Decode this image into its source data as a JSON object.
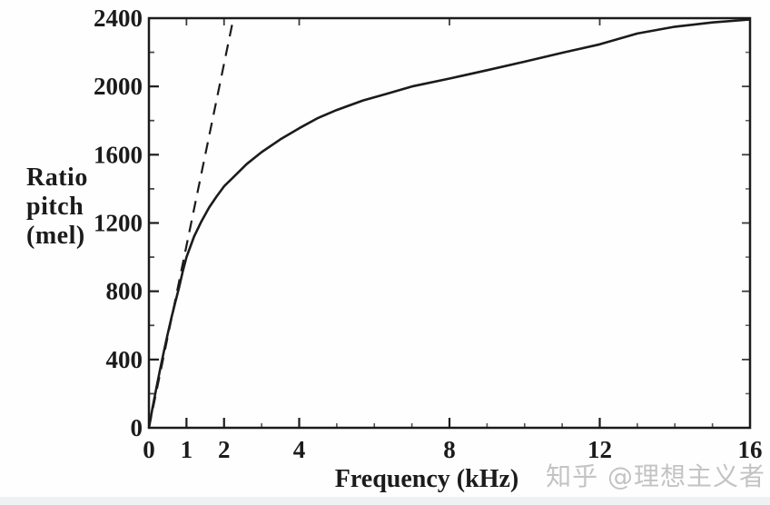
{
  "figure": {
    "background": "#fefefe",
    "ink_color": "#1b1b1b",
    "watermark": {
      "text": "知乎 @理想主义者",
      "color": "#c3c3c3"
    }
  },
  "chart_data": {
    "type": "line",
    "title": "",
    "xlabel": "Frequency (kHz)",
    "ylabel": "Ratio pitch (mel)",
    "ylabel_lines": [
      "Ratio",
      "pitch",
      "(mel)"
    ],
    "xlim": [
      0,
      16
    ],
    "ylim": [
      0,
      2400
    ],
    "grid": false,
    "frame": true,
    "legend": "none",
    "x_tick_labels": [
      0,
      1,
      2,
      4,
      8,
      12,
      16
    ],
    "x_major_ticks": [
      1,
      2,
      4,
      8,
      12
    ],
    "x_minor_ticks": [
      3,
      5,
      6,
      7,
      9,
      10,
      11,
      13,
      14,
      15
    ],
    "y_tick_labels": [
      0,
      400,
      800,
      1200,
      1600,
      2000,
      2400
    ],
    "y_major_ticks": [
      400,
      800,
      1200,
      1600,
      2000
    ],
    "y_minor_ticks": [
      200,
      600,
      1000,
      1400,
      1800,
      2200
    ],
    "series": [
      {
        "name": "linear-reference",
        "style": "dashed",
        "points": [
          [
            0,
            0
          ],
          [
            2.25,
            2400
          ]
        ]
      },
      {
        "name": "mel-scale-curve",
        "style": "solid",
        "points": [
          [
            0,
            0
          ],
          [
            0.1,
            120
          ],
          [
            0.2,
            235
          ],
          [
            0.3,
            345
          ],
          [
            0.4,
            450
          ],
          [
            0.5,
            550
          ],
          [
            0.6,
            645
          ],
          [
            0.7,
            735
          ],
          [
            0.8,
            820
          ],
          [
            0.9,
            915
          ],
          [
            1.0,
            1000
          ],
          [
            1.2,
            1120
          ],
          [
            1.4,
            1210
          ],
          [
            1.6,
            1290
          ],
          [
            1.8,
            1355
          ],
          [
            2.0,
            1415
          ],
          [
            2.3,
            1480
          ],
          [
            2.6,
            1545
          ],
          [
            3.0,
            1615
          ],
          [
            3.5,
            1690
          ],
          [
            4.0,
            1755
          ],
          [
            4.5,
            1815
          ],
          [
            5.0,
            1862
          ],
          [
            5.7,
            1918
          ],
          [
            6.3,
            1955
          ],
          [
            7.0,
            2000
          ],
          [
            8.0,
            2046
          ],
          [
            9.0,
            2095
          ],
          [
            10.0,
            2145
          ],
          [
            11.0,
            2197
          ],
          [
            12.0,
            2247
          ],
          [
            13.0,
            2310
          ],
          [
            14.0,
            2350
          ],
          [
            15.0,
            2375
          ],
          [
            16.0,
            2392
          ]
        ]
      }
    ]
  }
}
